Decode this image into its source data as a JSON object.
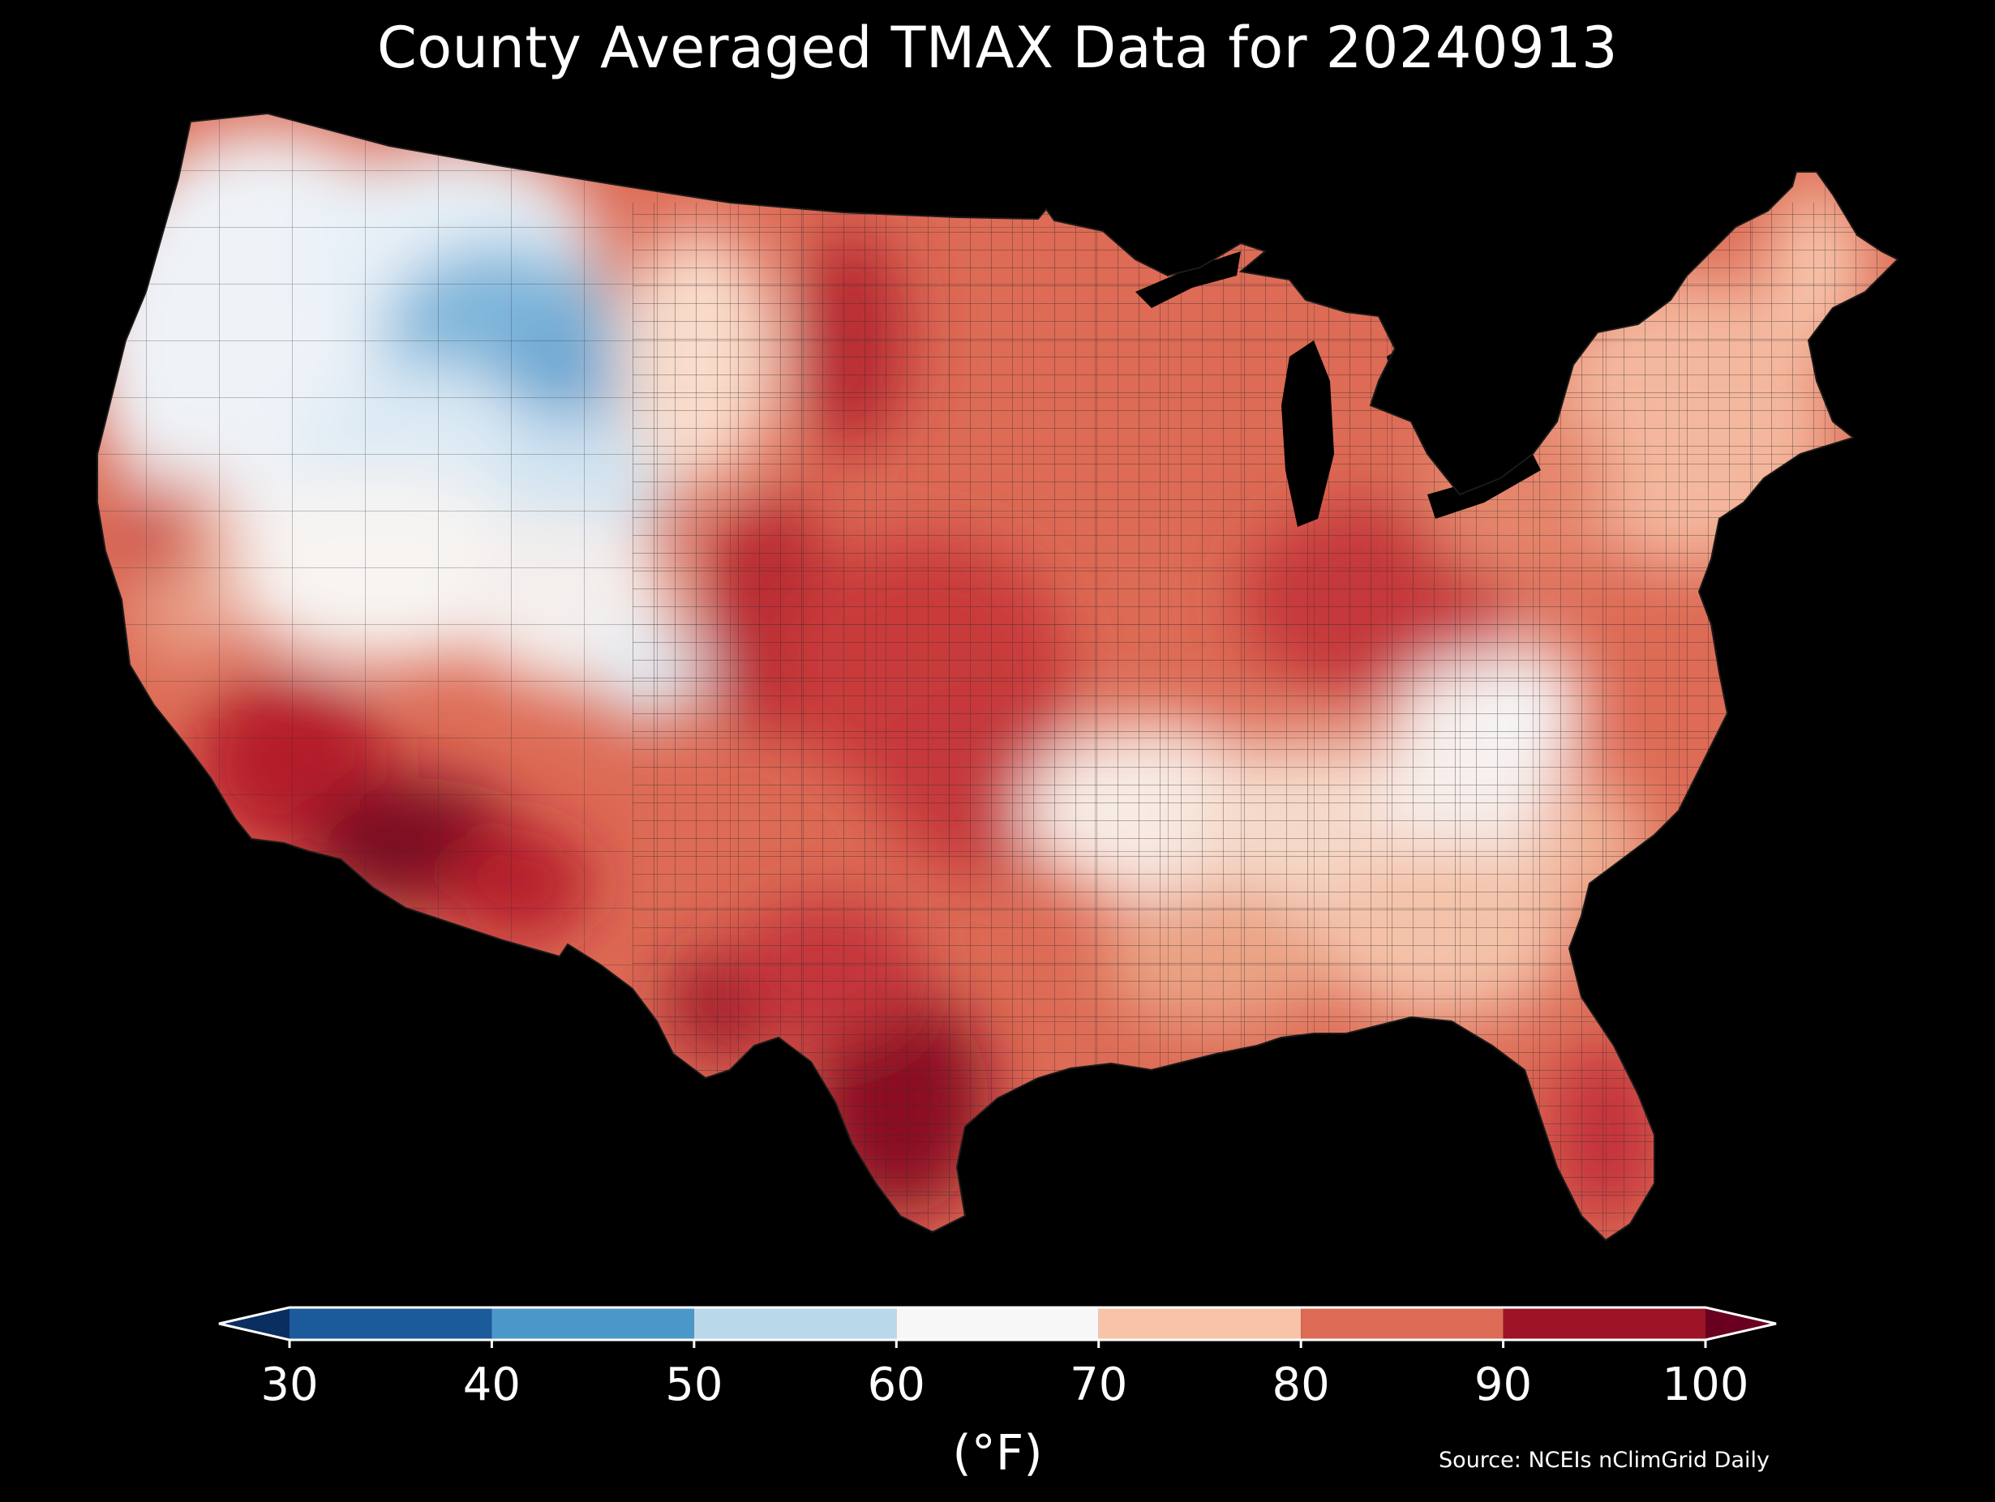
{
  "title": "County Averaged TMAX Data for 20240913",
  "colorbar": {
    "label": "(°F)",
    "ticks": [
      "30",
      "40",
      "50",
      "60",
      "70",
      "80",
      "90",
      "100"
    ],
    "bins": [
      {
        "from": 30,
        "to": 40,
        "color": "#1b5a9b"
      },
      {
        "from": 40,
        "to": 50,
        "color": "#4a98c9"
      },
      {
        "from": 50,
        "to": 60,
        "color": "#b9d8ea"
      },
      {
        "from": 60,
        "to": 70,
        "color": "#f7f7f7"
      },
      {
        "from": 70,
        "to": 80,
        "color": "#f8c3a8"
      },
      {
        "from": 80,
        "to": 90,
        "color": "#dd6b55"
      },
      {
        "from": 90,
        "to": 100,
        "color": "#9d1426"
      }
    ],
    "under_color": "#0b2e60",
    "over_color": "#6a0020"
  },
  "source": "Source: NCEIs nClimGrid Daily",
  "map": {
    "background": "#000000",
    "county_lines": "#2b2b2b"
  }
}
